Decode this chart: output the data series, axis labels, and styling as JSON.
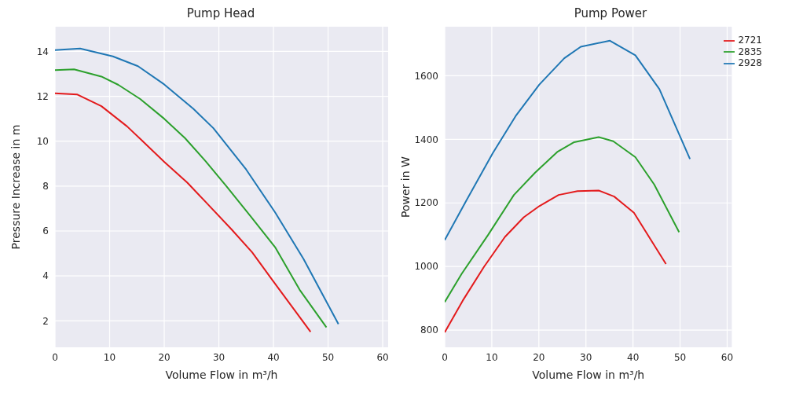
{
  "chart_data": [
    {
      "type": "line",
      "title": "Pump Head",
      "xlabel": "Volume Flow in m³/h",
      "ylabel": "Pressure Increase in m",
      "xlim": [
        0,
        61
      ],
      "xticks": [
        0,
        10,
        20,
        30,
        40,
        50,
        60
      ],
      "ylim": [
        0.82,
        15.1
      ],
      "yticks": [
        2,
        4,
        6,
        8,
        10,
        12,
        14
      ],
      "grid": true,
      "legend": false,
      "series": [
        {
          "color": "#1f77b4",
          "x": [
            0,
            4.6,
            10.6,
            15.2,
            20.0,
            25.3,
            29.0,
            35.0,
            40.3,
            45.5,
            51.9
          ],
          "values": [
            14.06,
            14.13,
            13.78,
            13.34,
            12.53,
            11.45,
            10.58,
            8.74,
            6.83,
            4.76,
            1.85
          ]
        },
        {
          "color": "#2ca02c",
          "x": [
            0,
            3.5,
            8.5,
            11.6,
            15.6,
            20.0,
            23.8,
            27.6,
            31.4,
            35.8,
            40.3,
            44.8,
            49.7
          ],
          "values": [
            13.17,
            13.2,
            12.88,
            12.51,
            11.88,
            11.0,
            10.14,
            9.1,
            7.99,
            6.66,
            5.28,
            3.38,
            1.71
          ]
        },
        {
          "color": "#e31a1c",
          "x": [
            0,
            4.1,
            8.5,
            13.2,
            15.8,
            20.0,
            24.2,
            27.6,
            32.3,
            36.1,
            39.9,
            46.8
          ],
          "values": [
            12.13,
            12.08,
            11.56,
            10.66,
            10.06,
            9.08,
            8.16,
            7.29,
            6.08,
            5.05,
            3.78,
            1.51
          ]
        }
      ]
    },
    {
      "type": "line",
      "title": "Pump Power",
      "xlabel": "Volume Flow in m³/h",
      "ylabel": "Power in W",
      "xlim": [
        0,
        61
      ],
      "xticks": [
        0,
        10,
        20,
        30,
        40,
        50,
        60
      ],
      "ylim": [
        746,
        1754
      ],
      "yticks": [
        800,
        1000,
        1200,
        1400,
        1600
      ],
      "grid": true,
      "legend": "top right",
      "series": [
        {
          "name": "2928",
          "color": "#1f77b4",
          "x": [
            0,
            4.5,
            10.2,
            15.2,
            20.1,
            25.4,
            28.9,
            35.1,
            40.5,
            45.6,
            52.1
          ],
          "values": [
            1083,
            1205,
            1356,
            1476,
            1572,
            1655,
            1691,
            1710,
            1664,
            1558,
            1338
          ]
        },
        {
          "name": "2835",
          "color": "#2ca02c",
          "x": [
            0,
            3.6,
            9.2,
            14.7,
            19.2,
            23.9,
            27.5,
            32.7,
            35.8,
            40.5,
            44.5,
            49.8
          ],
          "values": [
            888,
            977,
            1099,
            1225,
            1295,
            1360,
            1391,
            1407,
            1394,
            1344,
            1258,
            1108
          ]
        },
        {
          "name": "2721",
          "color": "#e31a1c",
          "x": [
            0,
            3.8,
            8.3,
            12.8,
            16.8,
            20.1,
            24.2,
            28.2,
            32.7,
            36.0,
            40.2,
            47.0
          ],
          "values": [
            793,
            892,
            998,
            1093,
            1155,
            1190,
            1225,
            1237,
            1239,
            1220,
            1169,
            1008
          ]
        }
      ]
    }
  ]
}
